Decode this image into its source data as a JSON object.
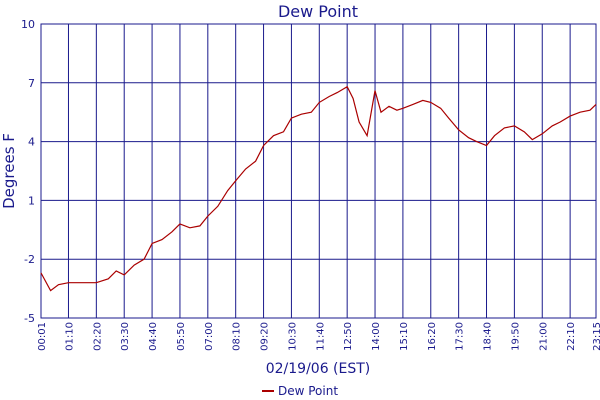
{
  "chart_data": {
    "type": "line",
    "title": "Dew Point",
    "xlabel": "02/19/06 (EST)",
    "ylabel": "Degrees F",
    "ylim": [
      -5,
      10
    ],
    "yticks": [
      10,
      7,
      4,
      1,
      -2,
      -5
    ],
    "x_tick_labels": [
      "00:01",
      "01:10",
      "02:20",
      "03:30",
      "04:40",
      "05:50",
      "07:00",
      "08:10",
      "09:20",
      "10:30",
      "11:40",
      "12:50",
      "14:00",
      "15:10",
      "16:20",
      "17:30",
      "18:40",
      "19:50",
      "21:00",
      "22:10",
      "23:15"
    ],
    "grid": true,
    "legend_position": "bottom-center",
    "colors": {
      "series": "#aa0000",
      "grid": "#1a1a8c",
      "text": "#1a1a8c"
    },
    "series": [
      {
        "name": "Dew Point",
        "x": [
          "00:01",
          "00:25",
          "00:45",
          "01:10",
          "01:40",
          "02:20",
          "02:50",
          "03:10",
          "03:30",
          "03:55",
          "04:20",
          "04:40",
          "05:05",
          "05:30",
          "05:50",
          "06:15",
          "06:40",
          "07:00",
          "07:25",
          "07:50",
          "08:10",
          "08:35",
          "09:00",
          "09:20",
          "09:45",
          "10:10",
          "10:30",
          "10:55",
          "11:20",
          "11:40",
          "12:05",
          "12:25",
          "12:50",
          "13:05",
          "13:20",
          "13:40",
          "14:00",
          "14:15",
          "14:35",
          "14:55",
          "15:10",
          "15:35",
          "16:00",
          "16:20",
          "16:45",
          "17:05",
          "17:30",
          "17:55",
          "18:15",
          "18:40",
          "19:00",
          "19:25",
          "19:50",
          "20:15",
          "20:35",
          "21:00",
          "21:25",
          "21:45",
          "22:10",
          "22:35",
          "23:00",
          "23:15"
        ],
        "y": [
          -2.7,
          -3.6,
          -3.3,
          -3.2,
          -3.2,
          -3.2,
          -3.0,
          -2.6,
          -2.8,
          -2.3,
          -2.0,
          -1.2,
          -1.0,
          -0.6,
          -0.2,
          -0.4,
          -0.3,
          0.2,
          0.7,
          1.5,
          2.0,
          2.6,
          3.0,
          3.8,
          4.3,
          4.5,
          5.2,
          5.4,
          5.5,
          6.0,
          6.3,
          6.5,
          6.8,
          6.2,
          5.0,
          4.3,
          6.6,
          5.5,
          5.8,
          5.6,
          5.7,
          5.9,
          6.1,
          6.0,
          5.7,
          5.2,
          4.6,
          4.2,
          4.0,
          3.8,
          4.3,
          4.7,
          4.8,
          4.5,
          4.1,
          4.4,
          4.8,
          5.0,
          5.3,
          5.5,
          5.6,
          5.9
        ]
      }
    ]
  }
}
